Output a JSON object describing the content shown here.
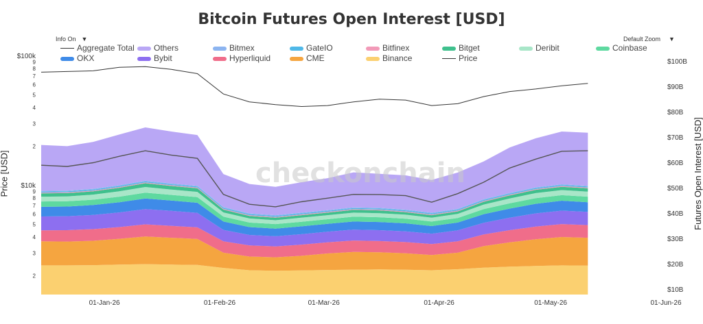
{
  "header": {
    "title": "Bitcoin Futures Open Interest [USD]"
  },
  "controls": {
    "info": "Info On",
    "zoom": "Default Zoom"
  },
  "watermark": "checkonchain",
  "chart_data": {
    "type": "area",
    "title": "Bitcoin Futures Open Interest [USD]",
    "ylabel_left": "Price [USD]",
    "ylabel_right": "Futures Open Interest [USD]",
    "x_ticks": [
      "01-Jan-26",
      "01-Feb-26",
      "01-Mar-26",
      "01-Apr-26",
      "01-May-26",
      "01-Jun-26"
    ],
    "x_range": [
      "2025-12-15",
      "2026-06-01"
    ],
    "left_axis": {
      "scale": "log",
      "range": [
        15000,
        100000
      ],
      "tick_labels": [
        "$100k",
        "9",
        "8",
        "7",
        "6",
        "5",
        "4",
        "3",
        "2",
        "$10k",
        "9",
        "8",
        "7",
        "6",
        "5",
        "4",
        "3",
        "2"
      ]
    },
    "right_axis": {
      "range": [
        8,
        102
      ],
      "unit": "B USD",
      "tick_labels": [
        "$100B",
        "$90B",
        "$80B",
        "$70B",
        "$60B",
        "$50B",
        "$40B",
        "$30B",
        "$20B",
        "$10B"
      ]
    },
    "legend": [
      {
        "name": "Aggregate Total",
        "color": "#555555",
        "kind": "line"
      },
      {
        "name": "Others",
        "color": "#b9a7f5",
        "kind": "area"
      },
      {
        "name": "Bitmex",
        "color": "#8cb4f0",
        "kind": "area"
      },
      {
        "name": "GateIO",
        "color": "#4fb8e8",
        "kind": "area"
      },
      {
        "name": "Bitfinex",
        "color": "#f29ab8",
        "kind": "area"
      },
      {
        "name": "Bitget",
        "color": "#3fc08d",
        "kind": "area"
      },
      {
        "name": "Deribit",
        "color": "#a8e6c8",
        "kind": "area"
      },
      {
        "name": "Coinbase",
        "color": "#5ed9a0",
        "kind": "area"
      },
      {
        "name": "OKX",
        "color": "#3f8be8",
        "kind": "area"
      },
      {
        "name": "Bybit",
        "color": "#8d6ff0",
        "kind": "area"
      },
      {
        "name": "Hyperliquid",
        "color": "#f06d8a",
        "kind": "area"
      },
      {
        "name": "CME",
        "color": "#f5a540",
        "kind": "area"
      },
      {
        "name": "Binance",
        "color": "#fbd070",
        "kind": "area"
      },
      {
        "name": "Price",
        "color": "#333333",
        "kind": "line"
      }
    ],
    "x": [
      "2025-12-15",
      "2025-12-22",
      "2025-12-29",
      "2026-01-05",
      "2026-01-12",
      "2026-01-19",
      "2026-01-26",
      "2026-02-02",
      "2026-02-09",
      "2026-02-16",
      "2026-02-23",
      "2026-03-02",
      "2026-03-09",
      "2026-03-16",
      "2026-03-23",
      "2026-03-30",
      "2026-04-06",
      "2026-04-13",
      "2026-04-20",
      "2026-04-27",
      "2026-05-04",
      "2026-05-11"
    ],
    "price": [
      88000,
      88500,
      89000,
      91500,
      92000,
      90000,
      87000,
      74000,
      69500,
      68000,
      67000,
      67500,
      69500,
      71000,
      70500,
      67500,
      68500,
      72500,
      75500,
      77000,
      79000,
      80500
    ],
    "series": [
      {
        "name": "Binance",
        "values": [
          11.5,
          11.5,
          11.6,
          11.8,
          12.0,
          11.8,
          11.7,
          10.5,
          9.6,
          9.4,
          9.5,
          9.7,
          9.8,
          9.9,
          9.8,
          9.6,
          10.0,
          10.6,
          11.0,
          11.3,
          11.5,
          11.4
        ]
      },
      {
        "name": "CME",
        "values": [
          9.5,
          9.4,
          9.6,
          10.2,
          10.9,
          10.6,
          10.2,
          6.0,
          5.4,
          5.3,
          5.8,
          6.5,
          7.0,
          6.8,
          6.5,
          6.0,
          6.5,
          8.5,
          9.6,
          10.5,
          11.2,
          11.0
        ]
      },
      {
        "name": "Hyperliquid",
        "values": [
          4.3,
          4.5,
          4.6,
          4.6,
          4.8,
          4.7,
          4.6,
          4.5,
          4.4,
          4.3,
          4.4,
          4.4,
          4.5,
          4.4,
          4.4,
          4.3,
          4.5,
          4.6,
          4.8,
          5.0,
          5.1,
          5.0
        ]
      },
      {
        "name": "Bybit",
        "values": [
          5.5,
          5.5,
          5.6,
          5.8,
          6.0,
          5.9,
          5.7,
          4.5,
          4.1,
          4.0,
          4.1,
          4.2,
          4.3,
          4.3,
          4.2,
          4.1,
          4.3,
          4.6,
          4.9,
          5.2,
          5.3,
          5.2
        ]
      },
      {
        "name": "OKX",
        "values": [
          3.8,
          3.8,
          3.9,
          4.0,
          4.2,
          4.1,
          4.0,
          3.3,
          3.1,
          3.0,
          3.1,
          3.1,
          3.2,
          3.2,
          3.2,
          3.0,
          3.1,
          3.4,
          3.6,
          3.8,
          3.9,
          3.8
        ]
      },
      {
        "name": "Coinbase",
        "values": [
          2.1,
          2.1,
          2.1,
          2.2,
          2.3,
          2.2,
          2.2,
          1.9,
          1.8,
          1.8,
          1.8,
          1.8,
          1.9,
          1.9,
          1.8,
          1.8,
          1.8,
          2.0,
          2.1,
          2.2,
          2.2,
          2.2
        ]
      },
      {
        "name": "Deribit",
        "values": [
          1.9,
          1.9,
          2.0,
          2.1,
          2.2,
          2.1,
          2.1,
          1.7,
          1.6,
          1.5,
          1.6,
          1.6,
          1.6,
          1.6,
          1.6,
          1.5,
          1.6,
          1.8,
          1.9,
          2.0,
          2.0,
          2.0
        ]
      },
      {
        "name": "Bitget",
        "values": [
          1.3,
          1.3,
          1.3,
          1.4,
          1.5,
          1.4,
          1.4,
          1.1,
          1.0,
          1.0,
          1.0,
          1.0,
          1.1,
          1.1,
          1.0,
          1.0,
          1.0,
          1.1,
          1.2,
          1.3,
          1.3,
          1.3
        ]
      },
      {
        "name": "Bitfinex",
        "values": [
          0.3,
          0.3,
          0.3,
          0.3,
          0.3,
          0.3,
          0.3,
          0.3,
          0.3,
          0.3,
          0.3,
          0.3,
          0.3,
          0.3,
          0.3,
          0.3,
          0.3,
          0.3,
          0.3,
          0.3,
          0.3,
          0.3
        ]
      },
      {
        "name": "GateIO",
        "values": [
          0.4,
          0.4,
          0.4,
          0.4,
          0.4,
          0.4,
          0.4,
          0.4,
          0.4,
          0.4,
          0.4,
          0.4,
          0.4,
          0.4,
          0.4,
          0.4,
          0.4,
          0.4,
          0.4,
          0.4,
          0.4,
          0.4
        ]
      },
      {
        "name": "Bitmex",
        "values": [
          0.3,
          0.3,
          0.3,
          0.3,
          0.3,
          0.3,
          0.3,
          0.3,
          0.3,
          0.3,
          0.3,
          0.3,
          0.3,
          0.3,
          0.3,
          0.3,
          0.3,
          0.3,
          0.3,
          0.3,
          0.3,
          0.3
        ]
      },
      {
        "name": "Others",
        "values": [
          18.1,
          17.5,
          18.5,
          20.0,
          21.0,
          20.5,
          20.0,
          13.0,
          11.6,
          11.2,
          12.0,
          12.6,
          13.8,
          13.4,
          13.5,
          12.9,
          14.3,
          14.9,
          17.9,
          19.3,
          20.8,
          20.9
        ]
      }
    ],
    "aggregate_total": [
      59,
      58.5,
      60,
      62.5,
      64.7,
      63,
      61.7,
      47.5,
      43.6,
      42.6,
      44.6,
      46.0,
      47.5,
      47.4,
      47.0,
      44.4,
      47.8,
      52.3,
      57.9,
      61.4,
      64.5,
      64.7
    ]
  }
}
